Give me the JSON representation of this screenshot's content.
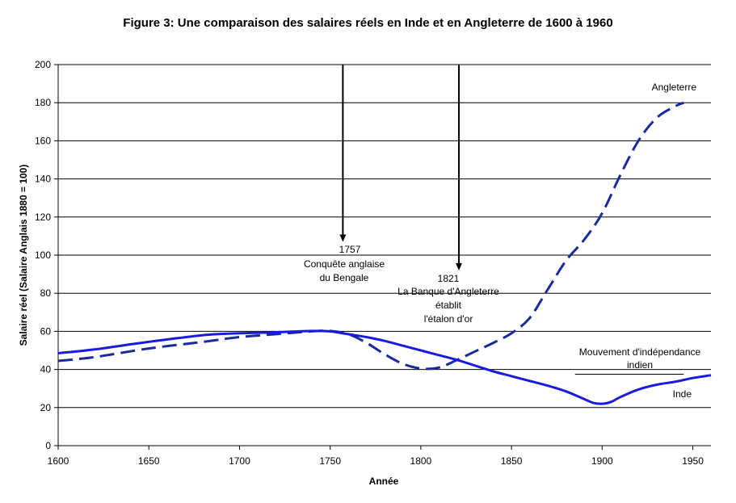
{
  "chart_data": {
    "type": "line",
    "title": "Figure 3: Une comparaison des salaires réels en Inde et en Angleterre de 1600 à 1960",
    "xlabel": "Année",
    "ylabel": "Salaire réel (Salaire Anglais 1880 = 100)",
    "xlim": [
      1600,
      1960
    ],
    "ylim": [
      0,
      200
    ],
    "xticks": [
      1600,
      1650,
      1700,
      1750,
      1800,
      1850,
      1900,
      1950
    ],
    "yticks": [
      0,
      20,
      40,
      60,
      80,
      100,
      120,
      140,
      160,
      180,
      200
    ],
    "grid": "horizontal",
    "series": [
      {
        "name": "Angleterre",
        "style": "dashed",
        "color": "#1a2a9a",
        "x": [
          1600,
          1620,
          1650,
          1680,
          1700,
          1720,
          1740,
          1750,
          1760,
          1770,
          1780,
          1790,
          1800,
          1810,
          1820,
          1830,
          1840,
          1850,
          1860,
          1870,
          1880,
          1890,
          1900,
          1910,
          1920,
          1930,
          1940,
          1945
        ],
        "values": [
          44.5,
          46.5,
          51,
          54.5,
          57,
          58.5,
          60,
          60.2,
          58.5,
          54,
          48,
          43,
          40.5,
          41,
          45,
          49.5,
          54,
          59,
          67,
          82,
          97,
          108,
          122,
          142,
          160,
          172,
          178,
          180
        ]
      },
      {
        "name": "Inde",
        "style": "solid",
        "color": "#1a1ae0",
        "x": [
          1600,
          1620,
          1650,
          1680,
          1700,
          1720,
          1740,
          1750,
          1760,
          1770,
          1780,
          1790,
          1800,
          1810,
          1820,
          1830,
          1840,
          1850,
          1860,
          1870,
          1880,
          1890,
          1895,
          1900,
          1905,
          1910,
          1920,
          1930,
          1940,
          1950,
          1960
        ],
        "values": [
          48.5,
          50.5,
          54.5,
          58,
          59,
          59.5,
          60.2,
          60,
          58.5,
          57,
          55,
          52.5,
          50,
          47.5,
          45,
          42,
          39,
          36.5,
          34,
          31.5,
          28.5,
          24.5,
          22.5,
          22,
          23,
          25.5,
          29.5,
          32,
          33.5,
          35.5,
          37
        ]
      }
    ],
    "labels": {
      "angleterre": "Angleterre",
      "inde": "Inde"
    },
    "annotations": {
      "a1757": {
        "year": "1757",
        "line1": "Conquête anglaise",
        "line2": "du Bengale",
        "x": 1757
      },
      "a1821": {
        "year": "1821",
        "line1": "La Banque d'Angleterre",
        "line2": "établit",
        "line3": "l'étalon d'or",
        "x": 1821
      },
      "independence": {
        "line1": "Mouvement d'indépendance",
        "line2": "indien"
      }
    }
  }
}
